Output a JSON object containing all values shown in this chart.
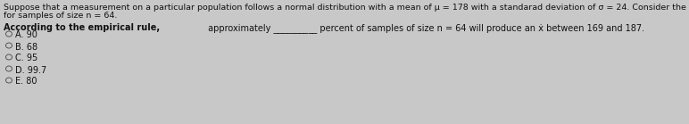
{
  "background_color": "#c8c8c8",
  "title_line1": "Suppose that a measurement on a particular population follows a normal distribution with a mean of μ = 178 with a standarad deviation of σ = 24. Consider the sampling distribution of ẋ",
  "title_line2": "for samples of size n = 64.",
  "bold_phrase": "According to the empirical rule,",
  "question_rest": " approximately __________ percent of samples of size n = 64 will produce an ẋ between 169 and 187.",
  "options": [
    "A. 90",
    "B. 68",
    "C. 95",
    "D. 99.7",
    "E. 80"
  ],
  "text_color": "#111111",
  "font_size_title": 6.8,
  "font_size_question": 7.0,
  "font_size_options": 7.0
}
